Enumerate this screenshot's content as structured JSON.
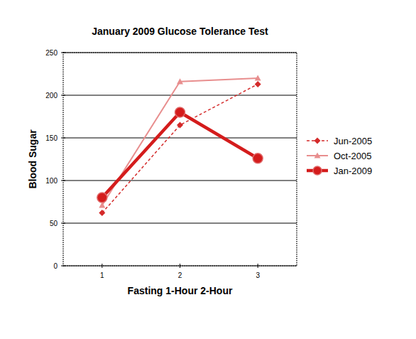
{
  "chart_data": {
    "type": "line",
    "title": "January 2009 Glucose Tolerance Test",
    "x_label": "Fasting 1-Hour 2-Hour",
    "y_label": "Blood Sugar",
    "x": [
      1,
      2,
      3
    ],
    "series": [
      {
        "name": "Jun-2005",
        "color": "#d42a2a",
        "marker": "diamond",
        "line_style": "dashed",
        "values": [
          62,
          165,
          213
        ]
      },
      {
        "name": "Oct-2005",
        "color": "#e88e8e",
        "marker": "triangle",
        "line_style": "solid",
        "values": [
          71,
          216,
          220
        ]
      },
      {
        "name": "Jan-2009",
        "color": "#d41c1c",
        "marker": "circle",
        "line_style": "solid",
        "values": [
          80,
          180,
          126
        ]
      }
    ],
    "xlim": [
      0.5,
      3.5
    ],
    "xticks": [
      1,
      2,
      3
    ],
    "ylim": [
      0,
      250
    ],
    "yticks": [
      0,
      50,
      100,
      150,
      200,
      250
    ],
    "grid": true,
    "legend": "right"
  }
}
